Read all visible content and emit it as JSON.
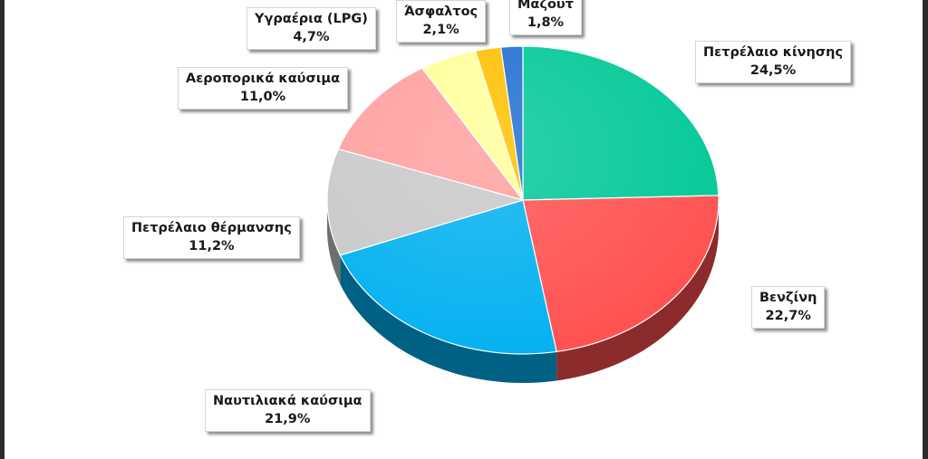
{
  "chart_data": {
    "type": "pie",
    "title": "",
    "legend": "none",
    "slices": [
      {
        "label": "Πετρέλαιο κίνησης",
        "value_label": "24,5%",
        "value": 24.5,
        "color": "#00c896"
      },
      {
        "label": "Βενζίνη",
        "value_label": "22,7%",
        "value": 22.7,
        "color": "#ff4f4f"
      },
      {
        "label": "Ναυτιλιακά καύσιμα",
        "value_label": "21,9%",
        "value": 21.9,
        "color": "#00b0f0"
      },
      {
        "label": "Πετρέλαιο θέρμανσης",
        "value_label": "11,2%",
        "value": 11.2,
        "color": "#c8c8c8"
      },
      {
        "label": "Αεροπορικά καύσιμα",
        "value_label": "11,0%",
        "value": 11.0,
        "color": "#ff9e9e"
      },
      {
        "label": "Υγραέρια (LPG)",
        "value_label": "4,7%",
        "value": 4.7,
        "color": "#ffff99"
      },
      {
        "label": "Άσφαλτος",
        "value_label": "2,1%",
        "value": 2.1,
        "color": "#ffc000"
      },
      {
        "label": "Μαζούτ",
        "value_label": "1,8%",
        "value": 1.8,
        "color": "#1f6fd0"
      }
    ]
  }
}
